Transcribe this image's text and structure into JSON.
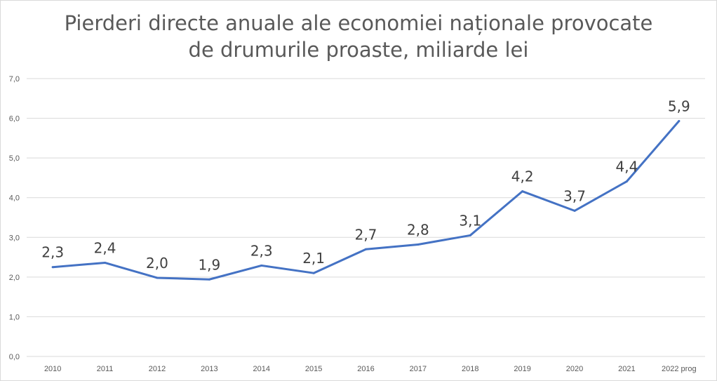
{
  "chart_data": {
    "type": "line",
    "title_lines": [
      "Pierderi directe anuale ale economiei naționale provocate",
      "de drumurile proaste, miliarde lei"
    ],
    "categories": [
      "2010",
      "2011",
      "2012",
      "2013",
      "2014",
      "2015",
      "2016",
      "2017",
      "2018",
      "2019",
      "2020",
      "2021",
      "2022 prog"
    ],
    "series": [
      {
        "name": "Pierderi directe",
        "values": [
          2.25,
          2.36,
          1.98,
          1.94,
          2.29,
          2.1,
          2.7,
          2.82,
          3.05,
          4.16,
          3.67,
          4.41,
          5.93
        ],
        "labels": [
          "2,3",
          "2,4",
          "2,0",
          "1,9",
          "2,3",
          "2,1",
          "2,7",
          "2,8",
          "3,1",
          "4,2",
          "3,7",
          "4,4",
          "5,9"
        ],
        "color": "#4472c4"
      }
    ],
    "yticks": [
      "0,0",
      "1,0",
      "2,0",
      "3,0",
      "4,0",
      "5,0",
      "6,0",
      "7,0"
    ],
    "ylim": [
      0,
      7
    ],
    "xlabel": "",
    "ylabel": "",
    "grid": true,
    "gridColor": "#d9d9d9"
  }
}
